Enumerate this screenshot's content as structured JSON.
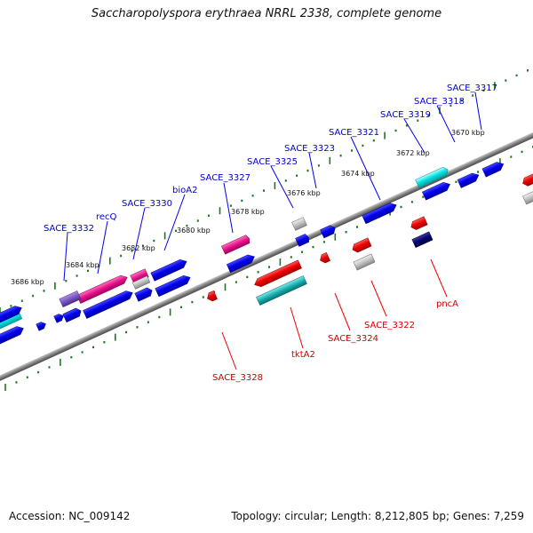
{
  "title": "Saccharopolyspora erythraea NRRL 2338, complete genome",
  "footer": {
    "accession": "Accession: NC_009142",
    "summary": "Topology: circular; Length: 8,212,805 bp; Genes: 7,259"
  },
  "colors": {
    "forward": "#0000ee",
    "reverse": "#ee0000",
    "backbone": "#808080",
    "tick": "#1a7a1a",
    "magenta": "#e8108a",
    "cyan": "#00d8d8",
    "teal": "#18b0b0",
    "grey": "#b8b8b8",
    "navy": "#000066",
    "purple": "#7a55c0"
  },
  "scale_labels": [
    "3686 kbp",
    "3684 kbp",
    "3682 kbp",
    "3680 kbp",
    "3678 kbp",
    "3676 kbp",
    "3674 kbp",
    "3672 kbp",
    "3670 kbp"
  ],
  "forward_labels": [
    "SACE_3317",
    "SACE_3318",
    "SACE_3319",
    "SACE_3321",
    "SACE_3323",
    "SACE_3325",
    "SACE_3327",
    "bioA2",
    "SACE_3330",
    "recQ",
    "SACE_3332"
  ],
  "reverse_labels": [
    "pncA",
    "SACE_3322",
    "SACE_3324",
    "tktA2",
    "SACE_3328"
  ]
}
